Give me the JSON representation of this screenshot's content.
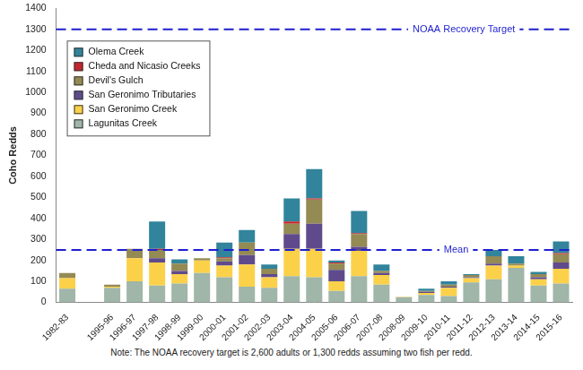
{
  "chart_data": {
    "type": "bar",
    "stacked": true,
    "grid": false,
    "legend": "top left",
    "y_label": "Coho Redds",
    "note": "Note: The NOAA recovery target is 2,600 adults or 1,300 redds assuming two fish per redd.",
    "categories": [
      "1982-83",
      null,
      "1995-96",
      "1996-97",
      "1997-98",
      "1998-99",
      "1999-00",
      "2000-01",
      "2001-02",
      "2002-03",
      "2003-04",
      "2004-05",
      "2005-06",
      "2006-07",
      "2007-08",
      "2008-09",
      "2009-10",
      "2010-11",
      "2011-12",
      "2012-13",
      "2013-14",
      "2014-15",
      "2015-16"
    ],
    "series": [
      {
        "name": "Olema Creek",
        "color": "#31849b",
        "values": [
          0,
          null,
          0,
          0,
          130,
          20,
          0,
          70,
          60,
          20,
          110,
          140,
          10,
          105,
          30,
          0,
          10,
          15,
          5,
          30,
          35,
          10,
          55
        ]
      },
      {
        "name": "Cheda and Nicasio Creeks",
        "color": "#c0282d",
        "values": [
          0,
          null,
          0,
          0,
          5,
          0,
          0,
          5,
          0,
          0,
          10,
          5,
          5,
          5,
          0,
          0,
          0,
          0,
          0,
          0,
          0,
          0,
          5
        ]
      },
      {
        "name": "Devil's Gulch",
        "color": "#948a54",
        "values": [
          25,
          null,
          10,
          45,
          40,
          35,
          10,
          15,
          60,
          25,
          50,
          115,
          30,
          60,
          10,
          0,
          5,
          10,
          10,
          35,
          10,
          15,
          40
        ]
      },
      {
        "name": "San Geronimo Tributaries",
        "color": "#5f4b8b",
        "values": [
          0,
          null,
          0,
          0,
          20,
          15,
          0,
          20,
          45,
          15,
          70,
          120,
          55,
          20,
          10,
          0,
          5,
          5,
          5,
          10,
          0,
          10,
          30
        ]
      },
      {
        "name": "San Geronimo Creek",
        "color": "#fcd14a",
        "values": [
          50,
          null,
          5,
          110,
          110,
          45,
          60,
          55,
          105,
          50,
          130,
          135,
          45,
          120,
          45,
          2,
          10,
          40,
          20,
          65,
          10,
          30,
          70
        ]
      },
      {
        "name": "Lagunitas Creek",
        "color": "#9fb6a8",
        "values": [
          65,
          null,
          70,
          100,
          80,
          90,
          140,
          120,
          75,
          70,
          125,
          120,
          55,
          125,
          85,
          25,
          35,
          30,
          95,
          110,
          165,
          80,
          90
        ]
      }
    ],
    "reference_lines": [
      {
        "label": "NOAA Recovery Target",
        "value": 1300,
        "color": "#1f1fd0",
        "line_style": "dashed"
      },
      {
        "label": "Mean",
        "value": 250,
        "color": "#1f1fd0",
        "line_style": "dashed"
      }
    ],
    "ylim": [
      0,
      1400
    ],
    "yticks": [
      0,
      100,
      200,
      300,
      400,
      500,
      600,
      700,
      800,
      900,
      1000,
      1100,
      1200,
      1300,
      1400
    ]
  }
}
